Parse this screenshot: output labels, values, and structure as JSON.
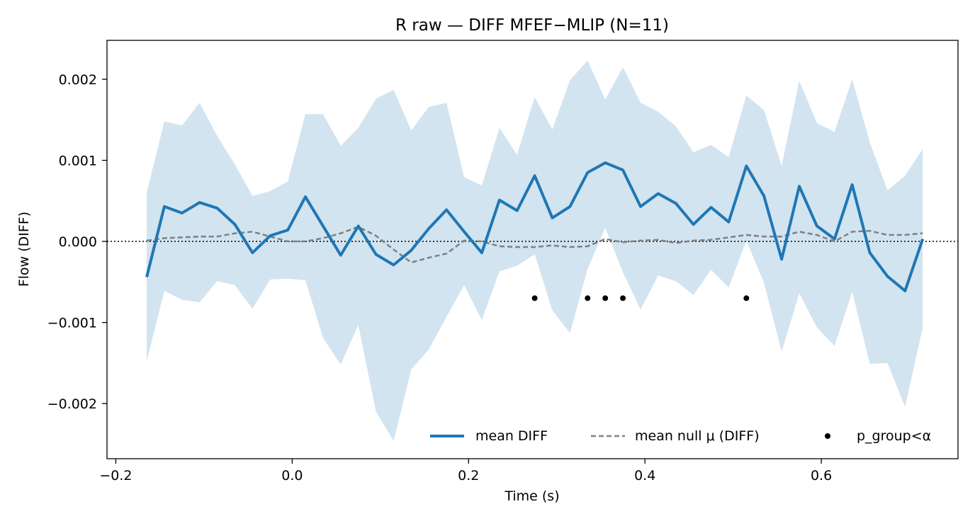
{
  "chart_data": {
    "type": "line",
    "title": "R raw — DIFF MFEF−MLIP (N=11)",
    "xlabel": "Time (s)",
    "ylabel": "Flow (DIFF)",
    "xlim": [
      -0.21,
      0.755
    ],
    "ylim": [
      -0.00268,
      0.00248
    ],
    "x_ticks": [
      -0.2,
      0.0,
      0.2,
      0.4,
      0.6
    ],
    "x_tick_labels": [
      "−0.2",
      "0.0",
      "0.2",
      "0.4",
      "0.6"
    ],
    "y_ticks": [
      -0.002,
      -0.001,
      0.0,
      0.001,
      0.002
    ],
    "y_tick_labels": [
      "−0.002",
      "−0.001",
      "0.000",
      "0.001",
      "0.002"
    ],
    "x": [
      -0.165,
      -0.145,
      -0.125,
      -0.105,
      -0.085,
      -0.065,
      -0.045,
      -0.025,
      -0.005,
      0.015,
      0.035,
      0.055,
      0.075,
      0.095,
      0.115,
      0.135,
      0.155,
      0.175,
      0.195,
      0.215,
      0.235,
      0.255,
      0.275,
      0.295,
      0.315,
      0.335,
      0.355,
      0.375,
      0.395,
      0.415,
      0.435,
      0.455,
      0.475,
      0.495,
      0.515,
      0.535,
      0.555,
      0.575,
      0.595,
      0.615,
      0.635,
      0.655,
      0.675,
      0.695,
      0.715
    ],
    "series": [
      {
        "name": "mean DIFF",
        "style": "solid",
        "color": "#1f77b4",
        "values": [
          -0.00044,
          0.00043,
          0.00035,
          0.00048,
          0.00041,
          0.00021,
          -0.00014,
          7e-05,
          0.00014,
          0.00055,
          0.00019,
          -0.00017,
          0.00019,
          -0.00016,
          -0.00029,
          -0.00011,
          0.00016,
          0.00039,
          0.00012,
          -0.00014,
          0.00051,
          0.00038,
          0.00081,
          0.00029,
          0.00043,
          0.00085,
          0.00097,
          0.00088,
          0.00043,
          0.00059,
          0.00047,
          0.00021,
          0.00042,
          0.00024,
          0.00093,
          0.00056,
          -0.00022,
          0.00068,
          0.00019,
          3e-05,
          0.0007,
          -0.00014,
          -0.00043,
          -0.00061,
          3e-05
        ]
      },
      {
        "name": "mean null μ (DIFF)",
        "style": "dashed",
        "color": "#808080",
        "values": [
          1e-05,
          4e-05,
          5e-05,
          6e-05,
          6e-05,
          0.0001,
          0.00012,
          6e-05,
          0.0,
          0.0,
          4e-05,
          0.0001,
          0.00018,
          7e-05,
          -0.0001,
          -0.00026,
          -0.0002,
          -0.00015,
          1e-05,
          0.0,
          -6e-05,
          -7e-05,
          -7e-05,
          -5e-05,
          -7e-05,
          -6e-05,
          3e-05,
          -1e-05,
          1e-05,
          2e-05,
          -2e-05,
          1e-05,
          2e-05,
          5e-05,
          8e-05,
          6e-05,
          6e-05,
          0.00012,
          8e-05,
          0.0,
          0.00012,
          0.00013,
          8e-05,
          8e-05,
          0.0001
        ]
      }
    ],
    "band": {
      "color": "#1f77b4",
      "alpha": 0.2,
      "upper": [
        0.0006,
        0.00148,
        0.00143,
        0.00171,
        0.0013,
        0.00095,
        0.00056,
        0.00062,
        0.00074,
        0.00157,
        0.00157,
        0.00118,
        0.0014,
        0.00176,
        0.00187,
        0.00137,
        0.00166,
        0.00171,
        0.00079,
        0.00069,
        0.0014,
        0.00107,
        0.00178,
        0.00138,
        0.00199,
        0.00223,
        0.00175,
        0.00215,
        0.00171,
        0.0016,
        0.00142,
        0.0011,
        0.00119,
        0.00104,
        0.0018,
        0.00162,
        0.00093,
        0.00198,
        0.00146,
        0.00135,
        0.002,
        0.00122,
        0.00063,
        0.00081,
        0.00114
      ],
      "lower": [
        -0.00148,
        -0.00061,
        -0.00072,
        -0.00075,
        -0.00049,
        -0.00054,
        -0.00083,
        -0.00047,
        -0.00046,
        -0.00048,
        -0.00119,
        -0.00152,
        -0.00103,
        -0.0021,
        -0.00246,
        -0.00158,
        -0.00133,
        -0.00093,
        -0.00054,
        -0.00097,
        -0.00037,
        -0.0003,
        -0.00016,
        -0.00085,
        -0.00113,
        -0.00034,
        0.00017,
        -0.00038,
        -0.00084,
        -0.00042,
        -0.00049,
        -0.00066,
        -0.00035,
        -0.00057,
        1e-05,
        -0.00051,
        -0.00136,
        -0.00064,
        -0.00106,
        -0.00129,
        -0.00062,
        -0.00151,
        -0.0015,
        -0.00204,
        -0.00106
      ]
    },
    "significant_points": {
      "name": "p_group<α",
      "x": [
        0.275,
        0.335,
        0.355,
        0.375,
        0.515
      ],
      "y": -0.0007,
      "color": "#000000"
    },
    "reference_line": {
      "y": 0.0,
      "style": "dotted",
      "color": "#000000"
    },
    "grid": false,
    "legend": {
      "placement": "bottom-right",
      "columns": 3
    }
  }
}
